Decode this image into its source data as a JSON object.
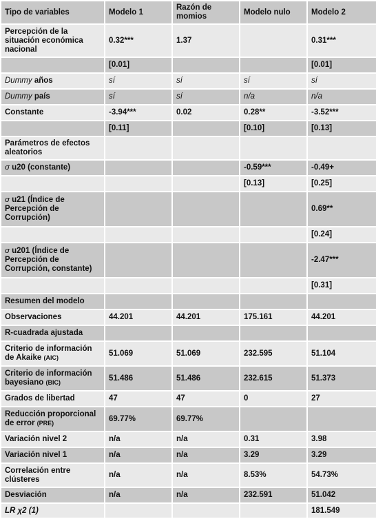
{
  "header": {
    "col0": "Tipo de variables",
    "col1": "Modelo 1",
    "col2": "Razón de momios",
    "col3": "Modelo nulo",
    "col4": "Modelo 2"
  },
  "rows": {
    "perc": {
      "label": "Percepción de la situación económica nacional",
      "m1": "0.32***",
      "rm": "1.37",
      "mn": "",
      "m2": "0.31***"
    },
    "perc_se": {
      "m1": "[0.01]",
      "m2": "[0.01]"
    },
    "dummy_anos": {
      "label_it": "Dummy",
      "label_rest": " años",
      "m1": "sí",
      "rm": "sí",
      "mn": "sí",
      "m2": "sí"
    },
    "dummy_pais": {
      "label_it": "Dummy",
      "label_rest": " país",
      "m1": "sí",
      "rm": "sí",
      "mn": "n/a",
      "m2": "n/a"
    },
    "constante": {
      "label": "Constante",
      "m1": "-3.94***",
      "rm": "0.02",
      "mn": "0.28**",
      "m2": "-3.52***"
    },
    "constante_se": {
      "m1": "[0.11]",
      "mn": "[0.10]",
      "m2": "[0.13]"
    },
    "param": {
      "label": "Parámetros de efectos aleatorios"
    },
    "u20": {
      "sigma": "σ",
      "label": " u20 (constante)",
      "mn": "-0.59***",
      "m2": "-0.49+"
    },
    "u20_se": {
      "mn": "[0.13]",
      "m2": "[0.25]"
    },
    "u21": {
      "sigma": "σ",
      "label": " u21 (Índice de Percepción de Corrupción)",
      "m2": "0.69**"
    },
    "u21_se": {
      "m2": "[0.24]"
    },
    "u201": {
      "sigma": "σ",
      "label": " u201 (Índice de Percepción de Corrupción, constante)",
      "m2": "-2.47***"
    },
    "u201_se": {
      "m2": "[0.31]"
    },
    "resumen": {
      "label": "Resumen del modelo"
    },
    "obs": {
      "label": "Observaciones",
      "m1": "44.201",
      "rm": "44.201",
      "mn": "175.161",
      "m2": "44.201"
    },
    "r2": {
      "label": "R-cuadrada ajustada"
    },
    "aic": {
      "label": "Criterio de información de Akaike ",
      "abbr": "(AIC)",
      "m1": "51.069",
      "rm": "51.069",
      "mn": "232.595",
      "m2": "51.104"
    },
    "bic": {
      "label": "Criterio de información bayesiano ",
      "abbr": "(BIC)",
      "m1": "51.486",
      "rm": "51.486",
      "mn": "232.615",
      "m2": "51.373"
    },
    "grados": {
      "label": "Grados de libertad",
      "m1": "47",
      "rm": "47",
      "mn": "0",
      "m2": "27"
    },
    "pre": {
      "label": "Reducción proporcional de error ",
      "abbr": "(PRE)",
      "m1": "69.77%",
      "rm": "69.77%"
    },
    "var2": {
      "label": "Variación nivel 2",
      "m1": "n/a",
      "rm": "n/a",
      "mn": "0.31",
      "m2": "3.98"
    },
    "var1": {
      "label": "Variación nivel 1",
      "m1": "n/a",
      "rm": "n/a",
      "mn": "3.29",
      "m2": "3.29"
    },
    "corr": {
      "label": "Correlación entre clústeres",
      "m1": "n/a",
      "rm": "n/a",
      "mn": "8.53%",
      "m2": "54.73%"
    },
    "desv": {
      "label": "Desviación",
      "m1": "n/a",
      "rm": "n/a",
      "mn": "232.591",
      "m2": "51.042"
    },
    "lr": {
      "label": "LR χ2 (1)",
      "m2": "181.549"
    }
  },
  "colors": {
    "dark_row": "#c8c8c8",
    "light_row": "#e9e9e9",
    "border": "#ffffff"
  }
}
